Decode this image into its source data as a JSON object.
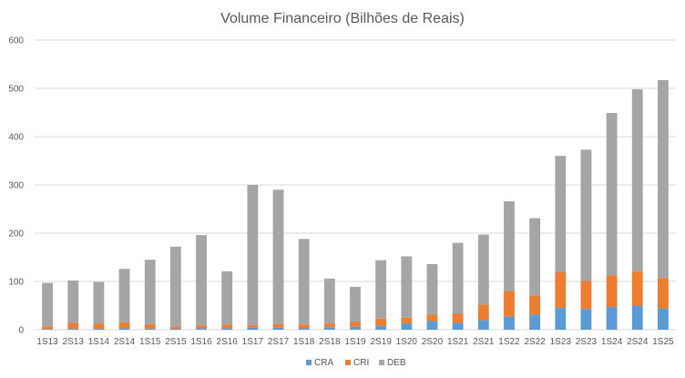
{
  "chart_data": {
    "type": "bar",
    "stacked": true,
    "title": "Volume Financeiro (Bilhões de Reais)",
    "xlabel": "",
    "ylabel": "",
    "ylim": [
      0,
      600
    ],
    "yticks": [
      0,
      100,
      200,
      300,
      400,
      500,
      600
    ],
    "grid": true,
    "legend_position": "bottom",
    "categories": [
      "1S13",
      "2S13",
      "1S14",
      "2S14",
      "1S15",
      "2S15",
      "1S16",
      "2S16",
      "1S17",
      "2S17",
      "1S18",
      "2S18",
      "1S19",
      "2S19",
      "1S20",
      "2S20",
      "1S21",
      "2S21",
      "1S22",
      "2S22",
      "1S23",
      "2S23",
      "1S24",
      "2S24",
      "1S25"
    ],
    "series": [
      {
        "name": "CRA",
        "color": "#5b9bd5",
        "values": [
          1,
          2,
          2,
          3,
          2,
          2,
          3,
          3,
          4,
          4,
          3,
          5,
          6,
          8,
          13,
          18,
          14,
          20,
          27,
          31,
          45,
          43,
          47,
          50,
          44
        ]
      },
      {
        "name": "CRI",
        "color": "#ed7d31",
        "values": [
          6,
          12,
          11,
          12,
          10,
          5,
          6,
          8,
          6,
          8,
          8,
          8,
          10,
          15,
          12,
          13,
          19,
          32,
          53,
          40,
          74,
          58,
          66,
          71,
          63
        ]
      },
      {
        "name": "DEB",
        "color": "#a5a5a5",
        "values": [
          90,
          88,
          86,
          111,
          133,
          165,
          187,
          110,
          290,
          278,
          177,
          93,
          73,
          121,
          127,
          105,
          147,
          145,
          186,
          160,
          241,
          272,
          336,
          377,
          410
        ]
      }
    ]
  }
}
